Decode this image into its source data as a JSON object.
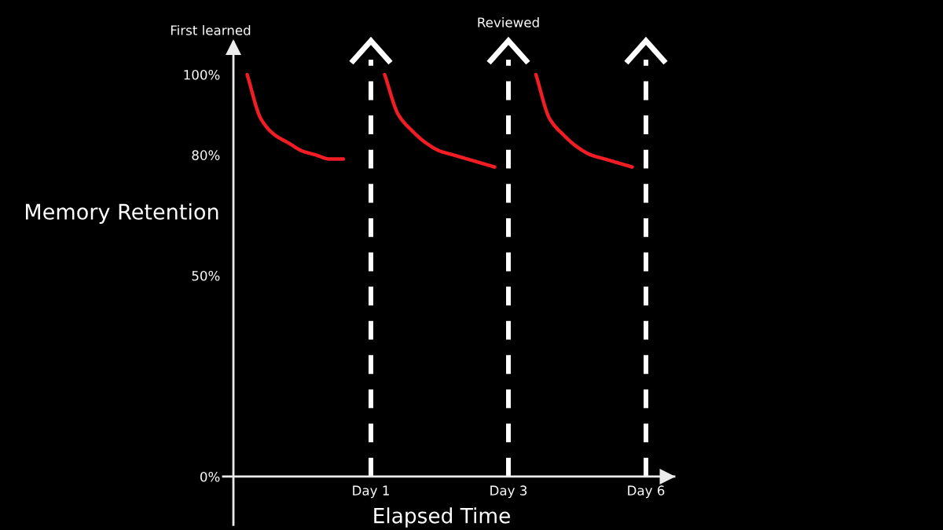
{
  "chart_data": {
    "type": "line",
    "xlabel": "Elapsed Time",
    "ylabel": "Memory Retention",
    "categories": [
      null,
      null,
      null,
      null,
      null,
      null,
      null,
      null,
      null,
      null,
      "Day 1",
      null,
      null,
      null,
      null,
      null,
      null,
      null,
      null,
      null,
      "Day 3",
      null,
      null,
      null,
      null,
      null,
      null,
      null,
      null,
      null,
      "Day 6"
    ],
    "ylim": [
      -12,
      108
    ],
    "yticks": [
      {
        "value": 0,
        "label": "0%"
      },
      {
        "value": 50,
        "label": "50%"
      },
      {
        "value": 80,
        "label": "80%"
      },
      {
        "value": 100,
        "label": "100%"
      }
    ],
    "line_style": "solid",
    "series": [
      {
        "color": "#f21d24",
        "values": [
          null,
          100,
          89,
          85,
          83,
          81,
          80,
          79,
          79,
          null,
          null,
          null,
          null,
          null,
          null,
          null,
          null,
          null,
          null,
          null,
          null,
          null,
          null,
          null,
          null,
          null,
          null,
          null,
          null,
          null,
          null
        ]
      },
      {
        "color": "#f21d24",
        "values": [
          null,
          null,
          null,
          null,
          null,
          null,
          null,
          null,
          null,
          null,
          null,
          100,
          90,
          86,
          83,
          81,
          80,
          79,
          78,
          77,
          null,
          null,
          null,
          null,
          null,
          null,
          null,
          null,
          null,
          null,
          null
        ]
      },
      {
        "color": "#f21d24",
        "values": [
          null,
          null,
          null,
          null,
          null,
          null,
          null,
          null,
          null,
          null,
          null,
          null,
          null,
          null,
          null,
          null,
          null,
          null,
          null,
          null,
          null,
          null,
          100,
          89,
          85,
          82,
          80,
          79,
          78,
          77,
          null
        ]
      }
    ],
    "ref_lines": [
      {
        "axis": "x",
        "value": "Day 1",
        "color": "#ffffff",
        "line_style": "dashed"
      },
      {
        "axis": "x",
        "value": "Day 3",
        "label": "Reviewed",
        "color": "#ffffff",
        "line_style": "dashed"
      },
      {
        "axis": "x",
        "value": "Day 6",
        "color": "#ffffff",
        "line_style": "dashed"
      }
    ],
    "annotations": [
      "First learned"
    ]
  }
}
